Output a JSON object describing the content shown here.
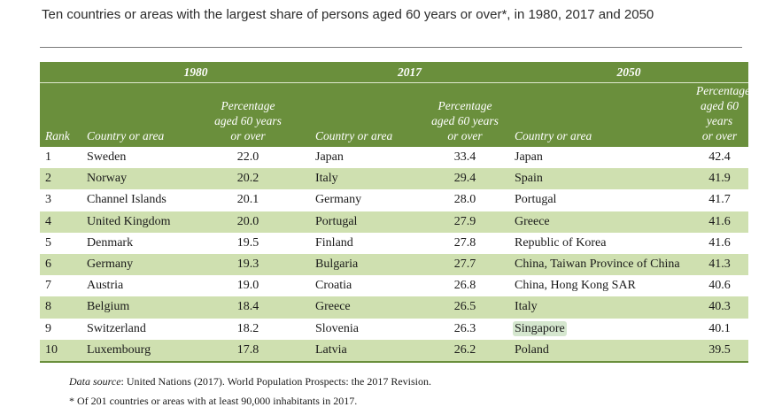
{
  "title": "Ten countries or areas with the largest share of persons aged 60 years or over*, in 1980, 2017 and 2050",
  "years": [
    "1980",
    "2017",
    "2050"
  ],
  "headers": {
    "rank": "Rank",
    "country": "Country or area",
    "pct_line1": "Percentage",
    "pct_line2": "aged 60 years",
    "pct_line3": "or over"
  },
  "rows": [
    {
      "rank": "1",
      "c1980": "Sweden",
      "v1980": "22.0",
      "c2017": "Japan",
      "v2017": "33.4",
      "c2050": "Japan",
      "v2050": "42.4"
    },
    {
      "rank": "2",
      "c1980": "Norway",
      "v1980": "20.2",
      "c2017": "Italy",
      "v2017": "29.4",
      "c2050": "Spain",
      "v2050": "41.9"
    },
    {
      "rank": "3",
      "c1980": "Channel Islands",
      "v1980": "20.1",
      "c2017": "Germany",
      "v2017": "28.0",
      "c2050": "Portugal",
      "v2050": "41.7"
    },
    {
      "rank": "4",
      "c1980": "United Kingdom",
      "v1980": "20.0",
      "c2017": "Portugal",
      "v2017": "27.9",
      "c2050": "Greece",
      "v2050": "41.6"
    },
    {
      "rank": "5",
      "c1980": "Denmark",
      "v1980": "19.5",
      "c2017": "Finland",
      "v2017": "27.8",
      "c2050": "Republic of Korea",
      "v2050": "41.6"
    },
    {
      "rank": "6",
      "c1980": "Germany",
      "v1980": "19.3",
      "c2017": "Bulgaria",
      "v2017": "27.7",
      "c2050": "China, Taiwan Province of China",
      "v2050": "41.3"
    },
    {
      "rank": "7",
      "c1980": "Austria",
      "v1980": "19.0",
      "c2017": "Croatia",
      "v2017": "26.8",
      "c2050": "China, Hong Kong SAR",
      "v2050": "40.6"
    },
    {
      "rank": "8",
      "c1980": "Belgium",
      "v1980": "18.4",
      "c2017": "Greece",
      "v2017": "26.5",
      "c2050": "Italy",
      "v2050": "40.3"
    },
    {
      "rank": "9",
      "c1980": "Switzerland",
      "v1980": "18.2",
      "c2017": "Slovenia",
      "v2017": "26.3",
      "c2050": "Singapore",
      "v2050": "40.1"
    },
    {
      "rank": "10",
      "c1980": "Luxembourg",
      "v1980": "17.8",
      "c2017": "Latvia",
      "v2017": "26.2",
      "c2050": "Poland",
      "v2050": "39.5"
    }
  ],
  "source": {
    "label": "Data source",
    "text": ": United Nations (2017). World Population Prospects: the 2017 Revision."
  },
  "footnote": "* Of 201 countries or areas with at least 90,000 inhabitants in 2017.",
  "colors": {
    "header_green": "#6a8f3c",
    "row_band": "#cfe0b0",
    "highlight": "#d5e7cf"
  }
}
